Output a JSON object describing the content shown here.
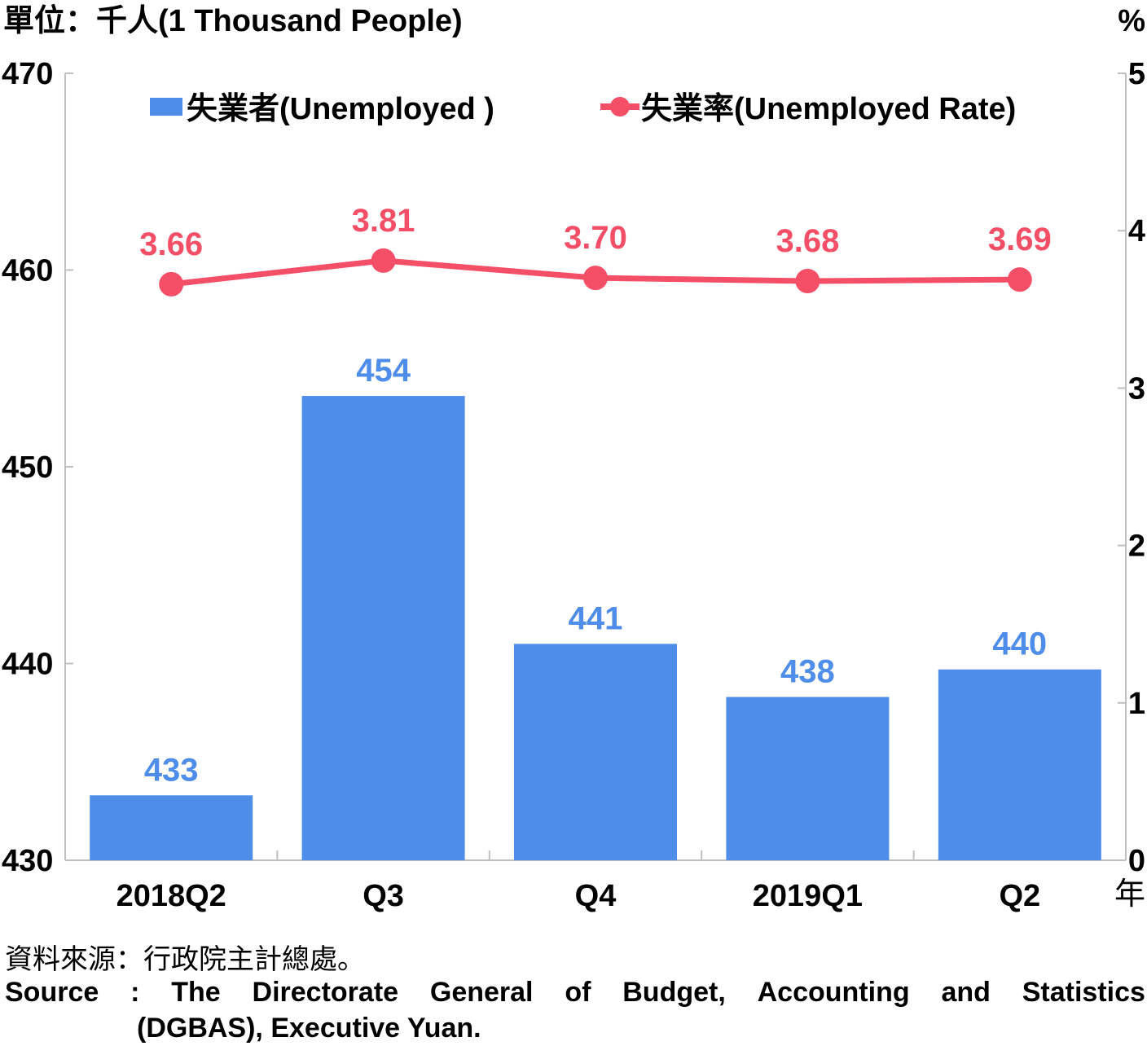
{
  "unit_label": "單位：千人(1 Thousand People)",
  "right_unit_label": "%",
  "x_unit": "年",
  "source_zh": "資料來源：行政院主計總處。",
  "source_en_parts": [
    "Source",
    ":",
    "The",
    "Directorate",
    "General",
    "of",
    "Budget,",
    "Accounting",
    "and",
    "Statistics"
  ],
  "source_en_line2": "(DGBAS), Executive Yuan.",
  "colors": {
    "bar": "#4f8dea",
    "line": "#f54f67",
    "axis": "#bfbfbf"
  },
  "chart_data": {
    "type": "bar+line",
    "categories": [
      "2018Q2",
      "Q3",
      "Q4",
      "2019Q1",
      "Q2"
    ],
    "left_axis": {
      "ylim": [
        430,
        470
      ],
      "ticks": [
        "430",
        "440",
        "450",
        "460",
        "470"
      ]
    },
    "right_axis": {
      "ylim": [
        0,
        5
      ],
      "ticks": [
        "0",
        "1",
        "2",
        "3",
        "4",
        "5"
      ]
    },
    "series": [
      {
        "name": "失業者(Unemployed )",
        "type": "bar",
        "axis": "left",
        "values": [
          433.3,
          453.6,
          441.0,
          438.3,
          439.7
        ],
        "labels": [
          "433",
          "454",
          "441",
          "438",
          "440"
        ]
      },
      {
        "name": "失業率(Unemployed Rate)",
        "type": "line",
        "axis": "right",
        "values": [
          3.66,
          3.81,
          3.7,
          3.68,
          3.69
        ],
        "labels": [
          "3.66",
          "3.81",
          "3.70",
          "3.68",
          "3.69"
        ]
      }
    ],
    "legend": "top",
    "grid": false
  }
}
